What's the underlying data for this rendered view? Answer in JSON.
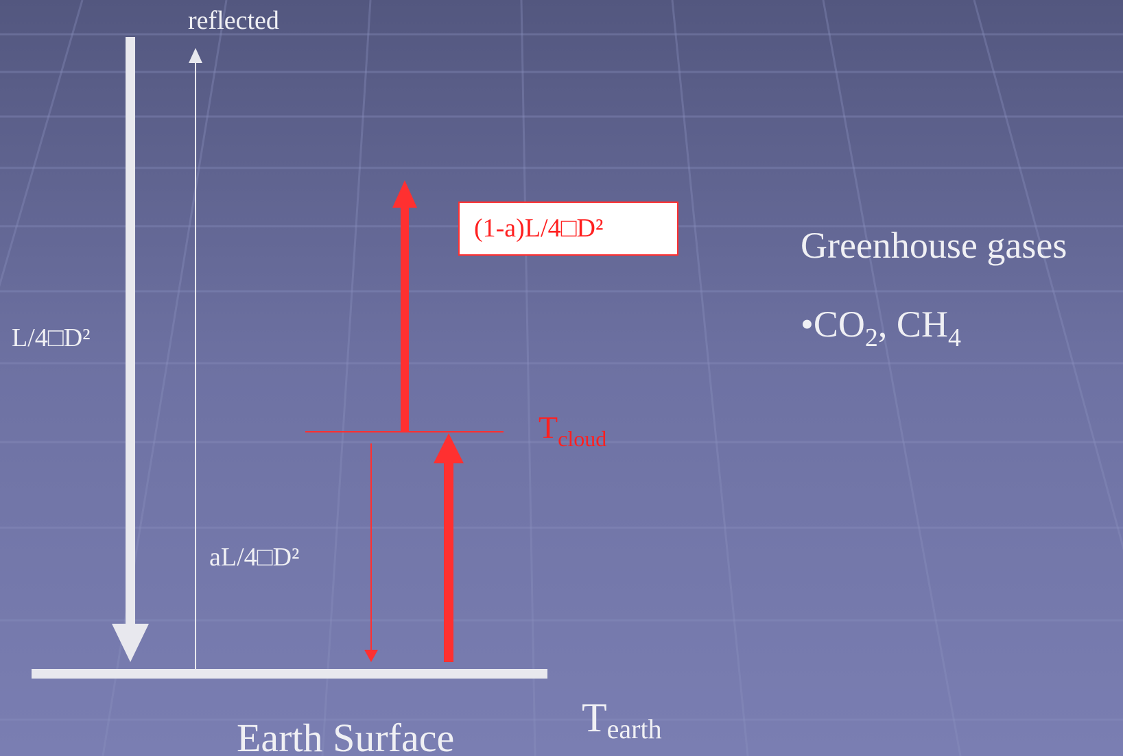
{
  "labels": {
    "reflected": "reflected",
    "incoming": "L/4□D²",
    "reflected_flux": "aL/4□D²",
    "absorbed": "(1-a)L/4□D²",
    "t_cloud": {
      "main": "T",
      "sub": "cloud"
    },
    "t_earth": {
      "main": "T",
      "sub": "earth"
    },
    "surface": "Earth Surface"
  },
  "side": {
    "title": "Greenhouse gases",
    "co2": {
      "text": "•CO",
      "sub": "2"
    },
    "ch4": {
      "text": ", CH",
      "sub": "4"
    }
  }
}
